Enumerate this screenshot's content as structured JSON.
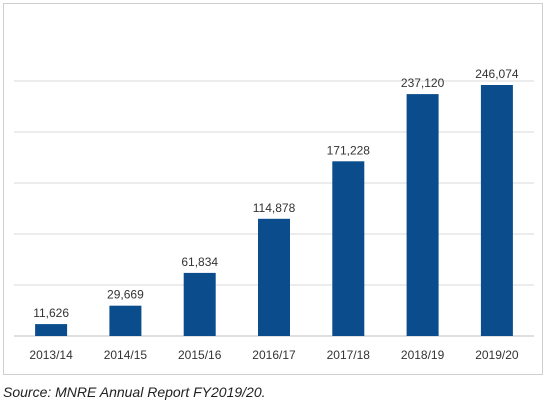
{
  "chart_data": {
    "type": "bar",
    "categories": [
      "2013/14",
      "2014/15",
      "2015/16",
      "2016/17",
      "2017/18",
      "2018/19",
      "2019/20"
    ],
    "values": [
      11626,
      29669,
      61834,
      114878,
      171228,
      237120,
      246074
    ],
    "value_labels": [
      "11,626",
      "29,669",
      "61,834",
      "114,878",
      "171,228",
      "237,120",
      "246,074"
    ],
    "ylim": [
      0,
      300000
    ],
    "y_gridlines": [
      50000,
      100000,
      150000,
      200000,
      250000
    ],
    "grid": true,
    "bar_color": "#0b4d8c",
    "title": "",
    "xlabel": "",
    "ylabel": ""
  },
  "source_text": "Source: MNRE Annual Report FY2019/20."
}
